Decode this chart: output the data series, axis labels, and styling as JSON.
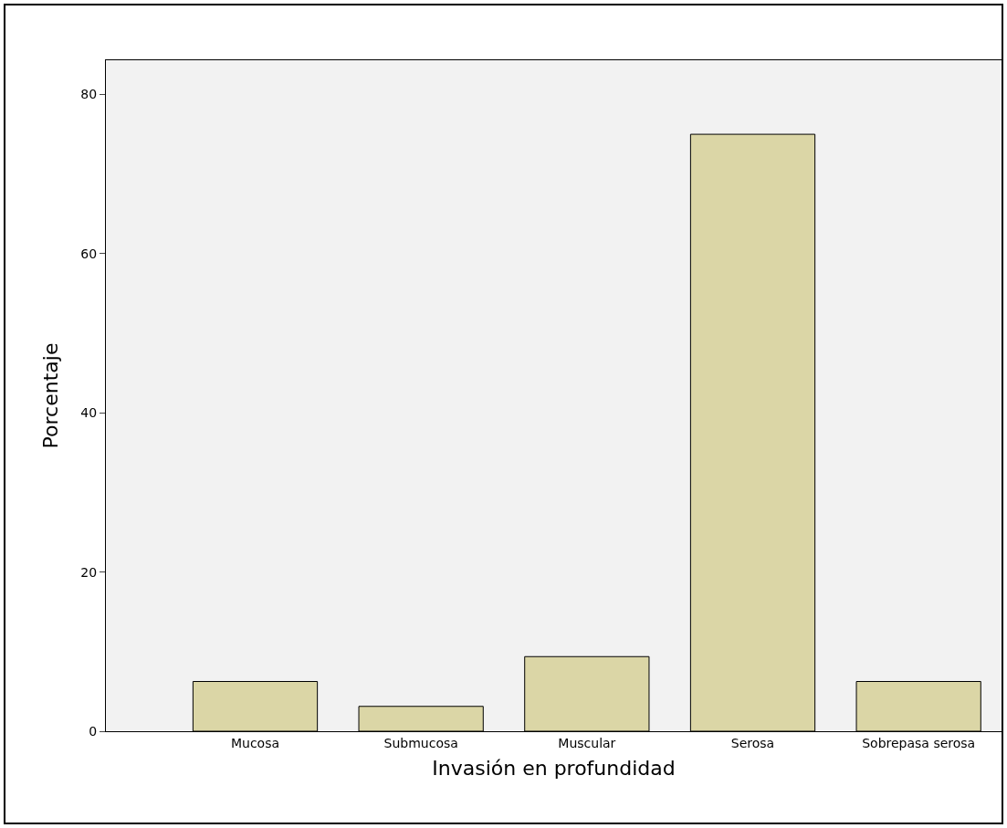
{
  "chart_data": {
    "type": "bar",
    "xlabel": "Invasión en profundidad",
    "ylabel": "Porcentaje",
    "categories": [
      "Mucosa",
      "Submucosa",
      "Muscular",
      "Serosa",
      "Sobrepasa serosa"
    ],
    "values": [
      6.25,
      3.125,
      9.375,
      75,
      6.25
    ],
    "color": "#dbd6a6",
    "ylim": [
      0,
      84.3
    ],
    "yticks": [
      0,
      20,
      40,
      60,
      80
    ],
    "grid": false,
    "legend": false
  }
}
